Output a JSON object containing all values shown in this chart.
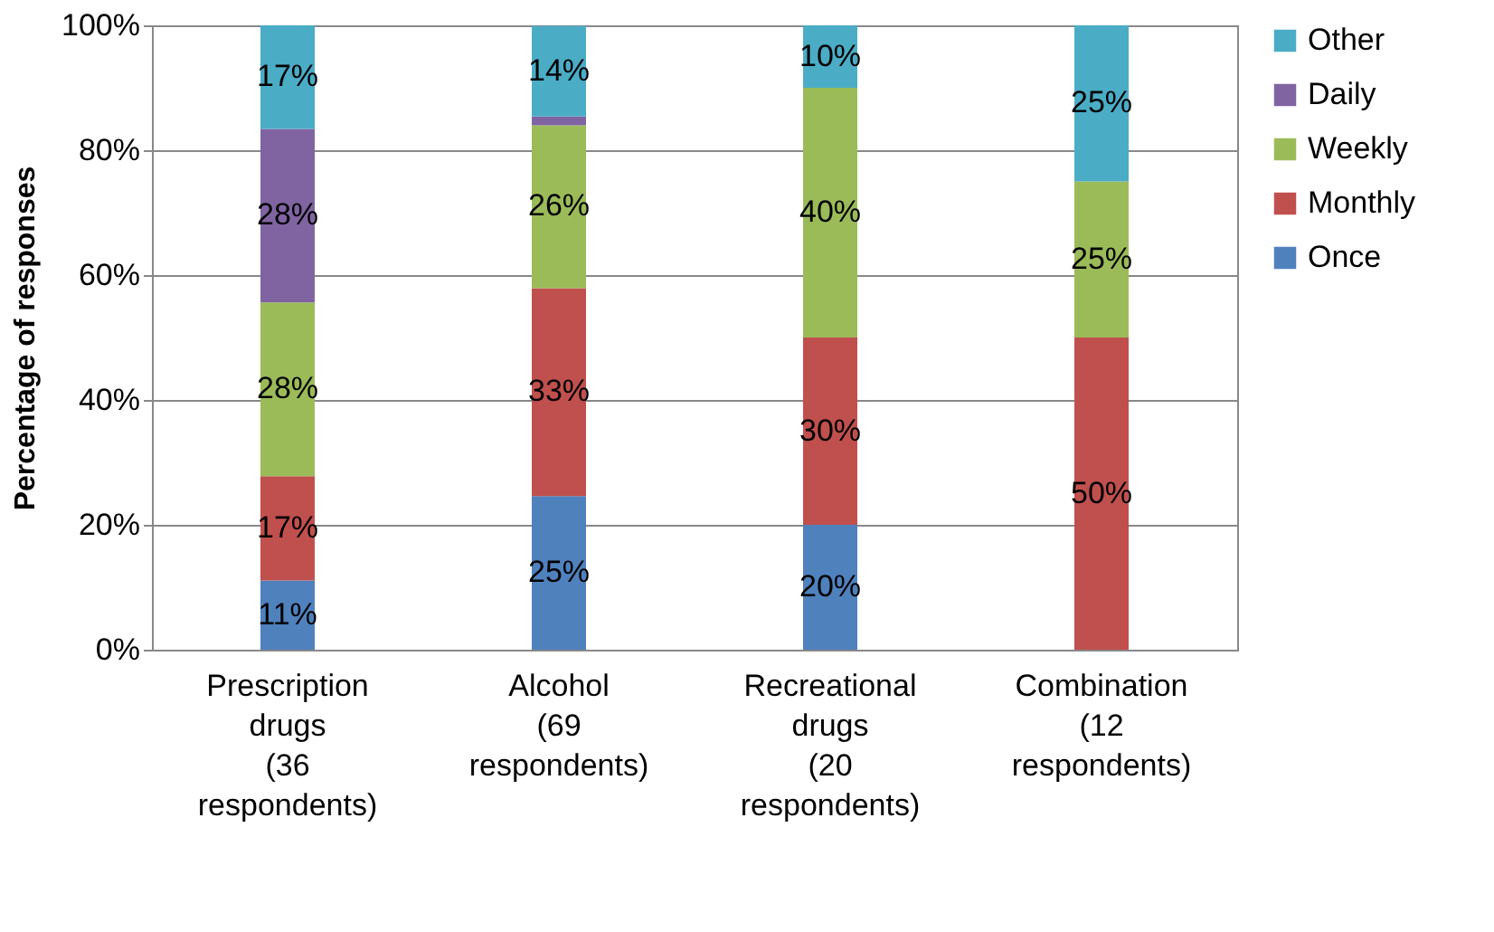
{
  "chart_data": {
    "type": "bar",
    "stacked": true,
    "ylabel": "Percentage of responses",
    "categories": [
      "Prescription\ndrugs\n(36\nrespondents)",
      "Alcohol\n(69\nrespondents)",
      "Recreational\ndrugs\n(20\nrespondents)",
      "Combination\n(12\nrespondents)"
    ],
    "series": [
      {
        "name": "Once",
        "color": "#4f81bd",
        "values": [
          11.1,
          24.6,
          20,
          0
        ],
        "value_labels": [
          "11%",
          "25%",
          "20%",
          null
        ]
      },
      {
        "name": "Monthly",
        "color": "#c0504d",
        "values": [
          16.7,
          33.3,
          30,
          50
        ],
        "value_labels": [
          "17%",
          "33%",
          "30%",
          "50%"
        ]
      },
      {
        "name": "Weekly",
        "color": "#9bbb59",
        "values": [
          27.8,
          26.1,
          40,
          25
        ],
        "value_labels": [
          "28%",
          "26%",
          "40%",
          "25%"
        ]
      },
      {
        "name": "Daily",
        "color": "#8064a2",
        "values": [
          27.8,
          1.4,
          0,
          0
        ],
        "value_labels": [
          "28%",
          null,
          null,
          null
        ]
      },
      {
        "name": "Other",
        "color": "#4bacc6",
        "values": [
          16.6,
          14.5,
          10,
          25
        ],
        "value_labels": [
          "17%",
          "14%",
          "10%",
          "25%"
        ]
      }
    ],
    "ylim": [
      0,
      100
    ],
    "yticks": [
      {
        "value": 0,
        "label": "0%"
      },
      {
        "value": 20,
        "label": "20%"
      },
      {
        "value": 40,
        "label": "40%"
      },
      {
        "value": 60,
        "label": "60%"
      },
      {
        "value": 80,
        "label": "80%"
      },
      {
        "value": 100,
        "label": "100%"
      }
    ],
    "grid": "y",
    "legend": "right"
  }
}
